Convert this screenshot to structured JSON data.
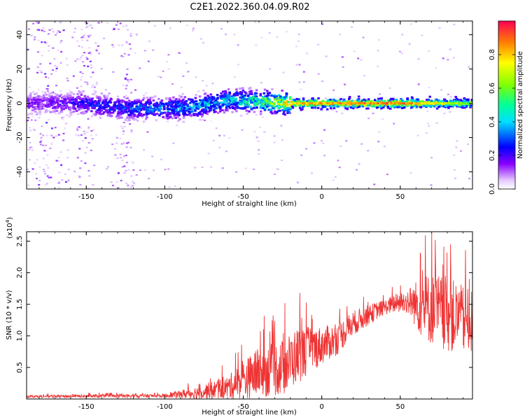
{
  "figure_title": "C2E1.2022.360.04.09.R02",
  "chart_data": [
    {
      "type": "heatmap",
      "title": "C2E1.2022.360.04.09.R02",
      "xlabel": "Height of straight line (km)",
      "ylabel": "Frequency (Hz)",
      "xlim": [
        -188,
        96
      ],
      "ylim": [
        -50,
        48
      ],
      "x_ticks": [
        -150,
        -100,
        -50,
        0,
        50
      ],
      "y_ticks": [
        -40,
        -20,
        0,
        20,
        40
      ],
      "colorbar": {
        "label": "Normalized spectral amplitude",
        "range": [
          0.0,
          1.0
        ],
        "ticks": [
          0.0,
          0.2,
          0.4,
          0.6,
          0.8
        ],
        "colormap": [
          "#ffffff",
          "#d8b0ff",
          "#8000ff",
          "#0000ff",
          "#00d0ff",
          "#00ff80",
          "#80ff00",
          "#ffff00",
          "#ff8000",
          "#ff0060"
        ]
      },
      "ridge": [
        {
          "x": -180,
          "f": 0,
          "amp": 0.15
        },
        {
          "x": -150,
          "f": 0,
          "amp": 0.25
        },
        {
          "x": -130,
          "f": -3,
          "amp": 0.3
        },
        {
          "x": -100,
          "f": -3,
          "amp": 0.35
        },
        {
          "x": -80,
          "f": -2,
          "amp": 0.4
        },
        {
          "x": -60,
          "f": 2,
          "amp": 0.45
        },
        {
          "x": -40,
          "f": 1,
          "amp": 0.55
        },
        {
          "x": -20,
          "f": 0,
          "amp": 0.8
        },
        {
          "x": 0,
          "f": 0,
          "amp": 0.85
        },
        {
          "x": 25,
          "f": 0,
          "amp": 0.9
        },
        {
          "x": 50,
          "f": 0,
          "amp": 0.9
        },
        {
          "x": 75,
          "f": 0,
          "amp": 0.75
        },
        {
          "x": 96,
          "f": 0,
          "amp": 0.6
        }
      ]
    },
    {
      "type": "line",
      "xlabel": "Height of straight line (km)",
      "ylabel": "SNR (10 * v/v)",
      "y_scale_label": "(x10",
      "y_scale_exp": "4",
      "y_scale_close": ")",
      "xlim": [
        -188,
        96
      ],
      "ylim": [
        0,
        2.65
      ],
      "x_ticks": [
        -150,
        -100,
        -50,
        0,
        50
      ],
      "y_ticks": [
        0.5,
        1.0,
        1.5,
        2.0,
        2.5
      ],
      "series": [
        {
          "name": "SNR",
          "color": "#ee3333",
          "trend_x": [
            -188,
            -100,
            -80,
            -60,
            -50,
            -40,
            -25,
            -15,
            0,
            10,
            20,
            35,
            45,
            55,
            65,
            75,
            85,
            96
          ],
          "trend_y": [
            0.04,
            0.05,
            0.1,
            0.18,
            0.3,
            0.42,
            0.5,
            0.7,
            0.85,
            0.95,
            1.2,
            1.4,
            1.5,
            1.55,
            1.45,
            1.4,
            1.3,
            1.2
          ],
          "spread_x": [
            -188,
            -100,
            -80,
            -60,
            -50,
            -40,
            -25,
            -15,
            0,
            20,
            40,
            55,
            65,
            80,
            96
          ],
          "spread_y": [
            0.02,
            0.03,
            0.1,
            0.18,
            0.3,
            0.4,
            0.45,
            0.45,
            0.3,
            0.2,
            0.12,
            0.2,
            0.55,
            0.6,
            0.5
          ],
          "peaks": [
            {
              "x": -55,
              "y": 0.73
            },
            {
              "x": -33,
              "y": 1.07
            },
            {
              "x": -14,
              "y": 1.68
            },
            {
              "x": 63,
              "y": 2.3
            },
            {
              "x": 70,
              "y": 2.67
            },
            {
              "x": 82,
              "y": 2.45
            },
            {
              "x": 94,
              "y": 1.9
            }
          ]
        }
      ]
    }
  ]
}
